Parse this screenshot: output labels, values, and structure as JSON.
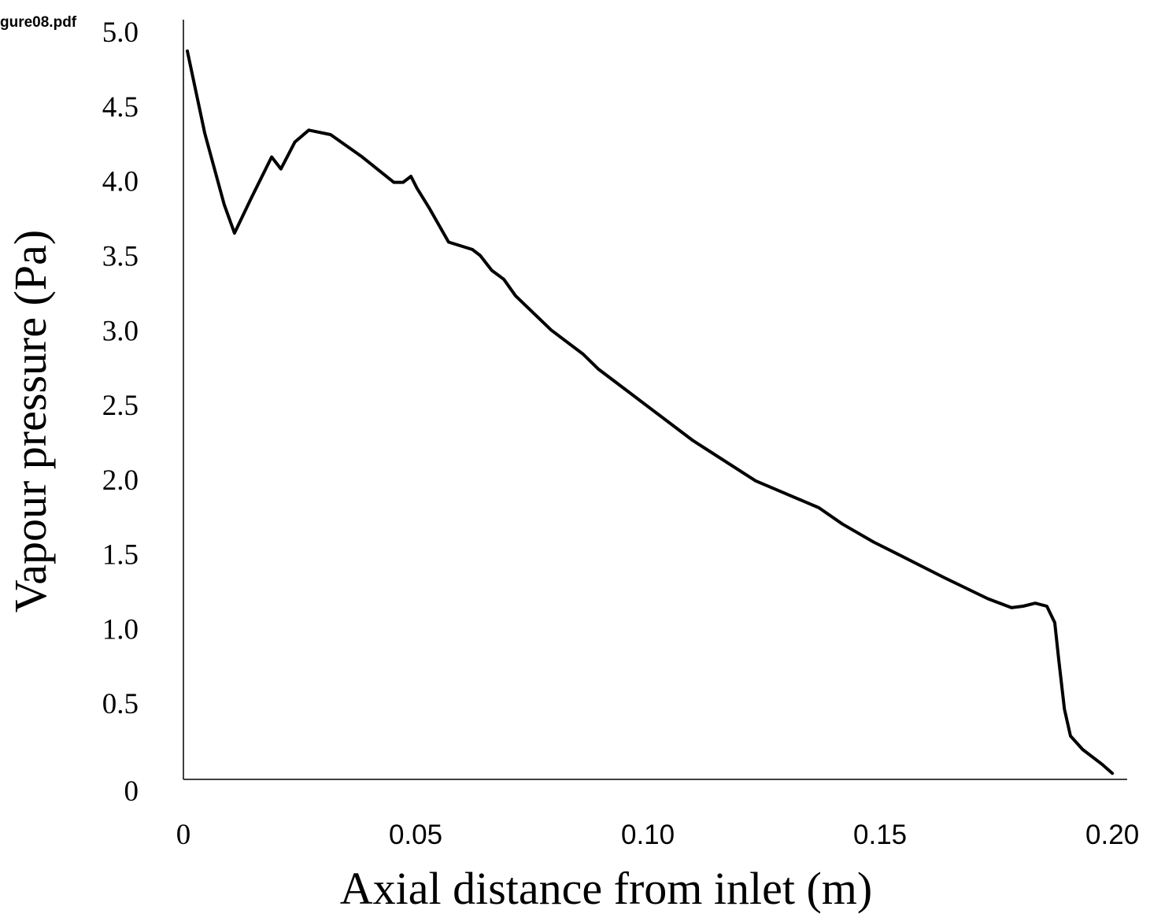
{
  "file_label": "gure08.pdf",
  "chart_data": {
    "type": "line",
    "xlabel": "Axial distance from inlet (m)",
    "ylabel": "Vapour pressure (Pa)",
    "xlim": [
      0,
      0.2032
    ],
    "ylim": [
      0,
      5.08
    ],
    "xticks": [
      0,
      0.05,
      {
        "value": 0.1,
        "label": "0.10"
      },
      0.15,
      {
        "value": 0.2,
        "label": "0.20"
      }
    ],
    "yticks": [
      0,
      {
        "value": 0.5,
        "label": "0.5"
      },
      {
        "value": 1,
        "label": "1.0"
      },
      {
        "value": 1.5,
        "label": "1.5"
      },
      {
        "value": 2,
        "label": "2.0"
      },
      {
        "value": 2.5,
        "label": "2.5"
      },
      {
        "value": 3,
        "label": "3.0"
      },
      {
        "value": 3.5,
        "label": "3.5"
      },
      {
        "value": 4,
        "label": "4.0"
      },
      {
        "value": 4.5,
        "label": "4.5"
      },
      {
        "value": 5,
        "label": "5.0"
      }
    ],
    "grid": false,
    "color": "#000000",
    "x": [
      0.00085,
      0.0046,
      0.0088,
      0.011,
      0.0147,
      0.019,
      0.021,
      0.024,
      0.027,
      0.0317,
      0.0385,
      0.0453,
      0.0473,
      0.049,
      0.0503,
      0.0529,
      0.0571,
      0.0622,
      0.0639,
      0.0664,
      0.069,
      0.0715,
      0.0792,
      0.086,
      0.0893,
      0.0961,
      0.1097,
      0.1232,
      0.1368,
      0.1419,
      0.1486,
      0.1537,
      0.1639,
      0.1732,
      0.1783,
      0.1808,
      0.1834,
      0.1859,
      0.1876,
      0.1885,
      0.1897,
      0.191,
      0.1936,
      0.1978,
      0.2
    ],
    "values": [
      4.87,
      4.32,
      3.84,
      3.65,
      3.89,
      4.16,
      4.08,
      4.26,
      4.34,
      4.31,
      4.16,
      3.99,
      3.99,
      4.03,
      3.95,
      3.82,
      3.59,
      3.54,
      3.5,
      3.4,
      3.34,
      3.23,
      3.0,
      2.84,
      2.74,
      2.58,
      2.26,
      1.99,
      1.81,
      1.7,
      1.58,
      1.5,
      1.34,
      1.2,
      1.14,
      1.15,
      1.17,
      1.15,
      1.04,
      0.78,
      0.46,
      0.28,
      0.19,
      0.09,
      0.03
    ]
  }
}
